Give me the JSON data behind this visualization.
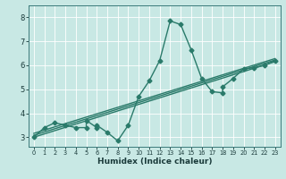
{
  "title": "",
  "xlabel": "Humidex (Indice chaleur)",
  "bg_color": "#c8e8e4",
  "line_color": "#2a7a6a",
  "grid_color": "#ffffff",
  "xlim": [
    -0.5,
    23.5
  ],
  "ylim": [
    2.6,
    8.5
  ],
  "xticks": [
    0,
    1,
    2,
    3,
    4,
    5,
    6,
    7,
    8,
    9,
    10,
    11,
    12,
    13,
    14,
    15,
    16,
    17,
    18,
    19,
    20,
    21,
    22,
    23
  ],
  "yticks": [
    3,
    4,
    5,
    6,
    7,
    8
  ],
  "curve_x": [
    0,
    1,
    2,
    3,
    4,
    5,
    5,
    6,
    6,
    7,
    8,
    9,
    10,
    11,
    12,
    13,
    14,
    15,
    16,
    17,
    18,
    18,
    19,
    20,
    21,
    22,
    23
  ],
  "curve_y": [
    3.0,
    3.4,
    3.6,
    3.5,
    3.4,
    3.4,
    3.7,
    3.4,
    3.5,
    3.2,
    2.85,
    3.5,
    4.7,
    5.35,
    6.2,
    7.85,
    7.7,
    6.65,
    5.45,
    4.9,
    4.85,
    5.1,
    5.45,
    5.85,
    5.9,
    6.0,
    6.2
  ],
  "reg_lines": [
    {
      "x": [
        0,
        23
      ],
      "y": [
        3.0,
        6.15
      ]
    },
    {
      "x": [
        0,
        23
      ],
      "y": [
        3.08,
        6.22
      ]
    },
    {
      "x": [
        0,
        23
      ],
      "y": [
        3.16,
        6.28
      ]
    }
  ],
  "markersize": 2.5,
  "linewidth": 1.0
}
